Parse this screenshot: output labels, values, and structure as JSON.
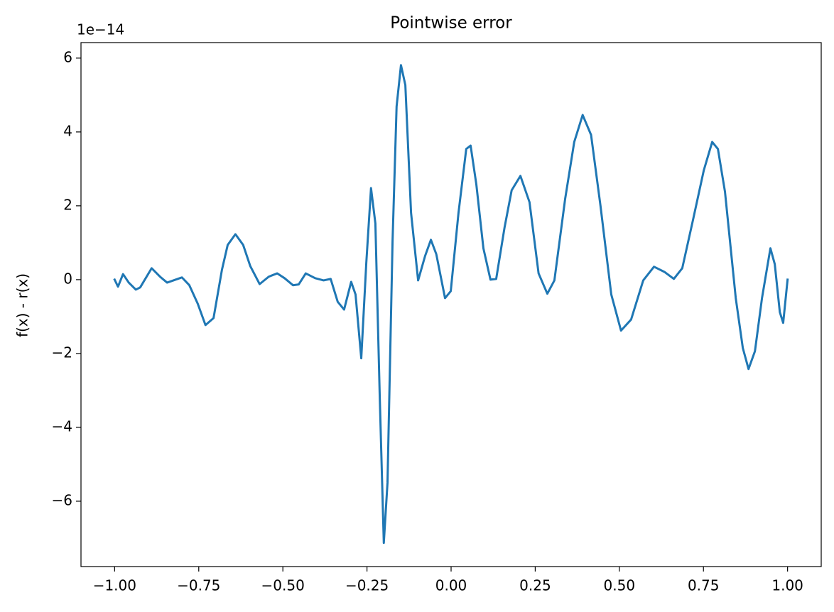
{
  "chart_data": {
    "type": "line",
    "title": "Pointwise error",
    "ylabel": "f(x) - r(x)",
    "y_offset_label": "1e−14",
    "color": "#1f77b4",
    "xlim": [
      -1.1,
      1.1
    ],
    "ylim": [
      -7.77,
      6.42
    ],
    "xticks": [
      {
        "value": -1.0,
        "label": "−1.00"
      },
      {
        "value": -0.75,
        "label": "−0.75"
      },
      {
        "value": -0.5,
        "label": "−0.50"
      },
      {
        "value": -0.25,
        "label": "−0.25"
      },
      {
        "value": 0,
        "label": "0.00"
      },
      0.25,
      {
        "value": 0.5,
        "label": "0.50"
      },
      0.75,
      {
        "value": 1.0,
        "label": "1.00"
      }
    ],
    "yticks": [
      {
        "value": -6,
        "label": "−6"
      },
      {
        "value": -4,
        "label": "−4"
      },
      {
        "value": -2,
        "label": "−2"
      },
      0,
      2,
      4,
      6
    ],
    "x": [
      -1,
      -0.99,
      -0.975,
      -0.958,
      -0.937,
      -0.924,
      -0.89,
      -0.865,
      -0.844,
      -0.8,
      -0.778,
      -0.753,
      -0.73,
      -0.706,
      -0.681,
      -0.664,
      -0.641,
      -0.618,
      -0.597,
      -0.569,
      -0.542,
      -0.517,
      -0.495,
      -0.47,
      -0.453,
      -0.432,
      -0.404,
      -0.379,
      -0.358,
      -0.337,
      -0.318,
      -0.297,
      -0.284,
      -0.267,
      -0.252,
      -0.238,
      -0.225,
      -0.212,
      -0.2,
      -0.189,
      -0.174,
      -0.162,
      -0.149,
      -0.136,
      -0.119,
      -0.098,
      -0.077,
      -0.06,
      -0.044,
      -0.018,
      -0.001,
      0.022,
      0.045,
      0.058,
      0.075,
      0.096,
      0.117,
      0.134,
      0.159,
      0.18,
      0.206,
      0.233,
      0.26,
      0.286,
      0.307,
      0.339,
      0.366,
      0.391,
      0.416,
      0.444,
      0.476,
      0.505,
      0.535,
      0.571,
      0.603,
      0.634,
      0.662,
      0.687,
      0.719,
      0.751,
      0.776,
      0.793,
      0.814,
      0.846,
      0.867,
      0.884,
      0.903,
      0.924,
      0.949,
      0.962,
      0.977,
      0.987,
      1
    ],
    "values": [
      0,
      -0.19,
      0.15,
      -0.08,
      -0.27,
      -0.21,
      0.31,
      0.08,
      -0.08,
      0.06,
      -0.15,
      -0.65,
      -1.23,
      -1.04,
      0.27,
      0.94,
      1.23,
      0.94,
      0.37,
      -0.12,
      0.08,
      0.17,
      0.04,
      -0.15,
      -0.13,
      0.17,
      0.04,
      -0.02,
      0.02,
      -0.6,
      -0.81,
      -0.06,
      -0.4,
      -2.13,
      0.46,
      2.48,
      1.52,
      -3.19,
      -7.13,
      -5.5,
      1.04,
      4.69,
      5.81,
      5.27,
      1.81,
      -0.02,
      0.65,
      1.08,
      0.69,
      -0.5,
      -0.31,
      1.81,
      3.54,
      3.63,
      2.58,
      0.85,
      0,
      0.02,
      1.42,
      2.42,
      2.81,
      2.1,
      0.17,
      -0.38,
      -0.02,
      2.19,
      3.73,
      4.46,
      3.92,
      2,
      -0.4,
      -1.38,
      -1.08,
      -0.02,
      0.35,
      0.21,
      0.02,
      0.31,
      1.62,
      2.96,
      3.73,
      3.54,
      2.38,
      -0.5,
      -1.85,
      -2.42,
      -1.94,
      -0.5,
      0.85,
      0.42,
      -0.88,
      -1.17,
      0
    ]
  }
}
